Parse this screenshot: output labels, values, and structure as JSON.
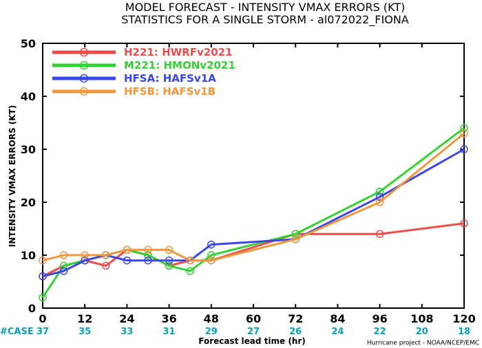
{
  "chart_data": {
    "type": "line",
    "title_line1": "MODEL FORECAST - INTENSITY VMAX ERRORS (KT)",
    "title_line2": "STATISTICS FOR A SINGLE STORM - al072022_FIONA",
    "xlabel": "Forecast lead time (hr)",
    "ylabel": "INTENSITY VMAX ERRORS (KT)",
    "xlim": [
      0,
      120
    ],
    "ylim": [
      0,
      50
    ],
    "xticks": [
      0,
      12,
      24,
      36,
      48,
      60,
      72,
      84,
      96,
      108,
      120
    ],
    "yticks": [
      0,
      10,
      20,
      30,
      40,
      50
    ],
    "series": [
      {
        "name": "H221: HWRFv2021",
        "color": "#f04b4b",
        "x": [
          0,
          6,
          12,
          18,
          24,
          30,
          36,
          42,
          48,
          72,
          96,
          120
        ],
        "y": [
          6,
          8,
          9,
          8,
          11,
          10,
          8,
          9,
          9,
          14,
          14,
          16
        ]
      },
      {
        "name": "M221: HMONv2021",
        "color": "#32d232",
        "x": [
          0,
          6,
          12,
          18,
          24,
          30,
          36,
          42,
          48,
          72,
          96,
          120
        ],
        "y": [
          2,
          8,
          9,
          10,
          11,
          10,
          8,
          7,
          10,
          14,
          22,
          34
        ]
      },
      {
        "name": "HFSA: HAFSv1A",
        "color": "#3c46e6",
        "x": [
          0,
          6,
          12,
          18,
          24,
          30,
          36,
          42,
          48,
          72,
          96,
          120
        ],
        "y": [
          6,
          7,
          9,
          10,
          9,
          9,
          9,
          9,
          12,
          13,
          21,
          30
        ]
      },
      {
        "name": "HFSB: HAFSv1B",
        "color": "#f0963c",
        "x": [
          0,
          6,
          12,
          18,
          24,
          30,
          36,
          42,
          48,
          72,
          96,
          120
        ],
        "y": [
          9,
          10,
          10,
          10,
          11,
          11,
          11,
          9,
          9,
          13,
          20,
          33
        ]
      }
    ],
    "legend_position": "top-left",
    "case_label": "#CASE",
    "case_label_color": "#0aa0b4",
    "case_counts": [
      {
        "x": 0,
        "n": 37
      },
      {
        "x": 12,
        "n": 35
      },
      {
        "x": 24,
        "n": 33
      },
      {
        "x": 36,
        "n": 31
      },
      {
        "x": 48,
        "n": 29
      },
      {
        "x": 60,
        "n": 27
      },
      {
        "x": 72,
        "n": 26
      },
      {
        "x": 84,
        "n": 24
      },
      {
        "x": 96,
        "n": 22
      },
      {
        "x": 108,
        "n": 20
      },
      {
        "x": 120,
        "n": 18
      }
    ],
    "credit": "Hurricane project - NOAA/NCEP/EMC"
  }
}
